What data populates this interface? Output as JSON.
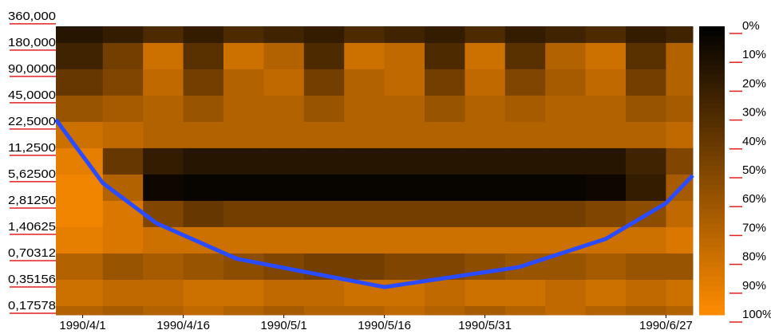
{
  "chart_data": {
    "type": "heatmap",
    "y_scale": "log",
    "ylim": [
      0.1395,
      279
    ],
    "xlim": [
      "1990/3/28",
      "1990/7/1"
    ],
    "yticks": [
      {
        "value": 360,
        "label": "360,000"
      },
      {
        "value": 180,
        "label": "180,000"
      },
      {
        "value": 90,
        "label": "90,0000"
      },
      {
        "value": 45,
        "label": "45,0000"
      },
      {
        "value": 22.5,
        "label": "22,5000"
      },
      {
        "value": 11.25,
        "label": "11,2500"
      },
      {
        "value": 5.625,
        "label": "5,62500"
      },
      {
        "value": 2.8125,
        "label": "2,81250"
      },
      {
        "value": 1.40625,
        "label": "1,40625"
      },
      {
        "value": 0.70312,
        "label": "0,70312"
      },
      {
        "value": 0.35156,
        "label": "0,35156"
      },
      {
        "value": 0.17578,
        "label": "0,17578"
      }
    ],
    "xticks": [
      "1990/4/1",
      "1990/4/16",
      "1990/5/1",
      "1990/5/16",
      "1990/5/31",
      "1990/6/27"
    ],
    "x_edges": [
      "1990/3/28",
      "1990/4/4",
      "1990/4/10",
      "1990/4/16",
      "1990/4/22",
      "1990/4/28",
      "1990/5/4",
      "1990/5/10",
      "1990/5/16",
      "1990/5/22",
      "1990/5/28",
      "1990/6/3",
      "1990/6/9",
      "1990/6/15",
      "1990/6/21",
      "1990/6/27",
      "1990/7/1"
    ],
    "y_edges": [
      279,
      180,
      90,
      45,
      22.5,
      11.25,
      5.625,
      2.8125,
      1.40625,
      0.70312,
      0.35156,
      0.17578,
      0.1395
    ],
    "z": [
      [
        15,
        20,
        30,
        20,
        30,
        25,
        20,
        30,
        25,
        20,
        30,
        20,
        25,
        30,
        20,
        25
      ],
      [
        25,
        45,
        80,
        35,
        80,
        70,
        30,
        80,
        75,
        30,
        80,
        35,
        70,
        80,
        35,
        70
      ],
      [
        40,
        50,
        75,
        45,
        70,
        75,
        45,
        70,
        75,
        45,
        75,
        50,
        65,
        75,
        45,
        70
      ],
      [
        60,
        65,
        70,
        60,
        70,
        70,
        60,
        70,
        70,
        60,
        70,
        65,
        70,
        70,
        60,
        65
      ],
      [
        80,
        75,
        70,
        70,
        70,
        70,
        70,
        70,
        70,
        70,
        70,
        70,
        70,
        70,
        70,
        75
      ],
      [
        90,
        40,
        20,
        15,
        15,
        15,
        15,
        15,
        15,
        15,
        15,
        15,
        15,
        15,
        25,
        50
      ],
      [
        95,
        70,
        5,
        3,
        3,
        3,
        3,
        3,
        3,
        3,
        3,
        3,
        3,
        5,
        20,
        65
      ],
      [
        95,
        85,
        50,
        40,
        45,
        45,
        45,
        45,
        45,
        45,
        45,
        45,
        45,
        50,
        55,
        75
      ],
      [
        90,
        85,
        80,
        80,
        80,
        80,
        80,
        80,
        80,
        80,
        80,
        80,
        80,
        80,
        80,
        85
      ],
      [
        70,
        60,
        65,
        60,
        55,
        50,
        45,
        45,
        50,
        50,
        55,
        60,
        60,
        65,
        60,
        60
      ],
      [
        80,
        75,
        75,
        80,
        80,
        75,
        75,
        80,
        80,
        75,
        80,
        80,
        75,
        80,
        75,
        80
      ],
      [
        70,
        65,
        70,
        75,
        70,
        65,
        70,
        70,
        75,
        70,
        65,
        70,
        75,
        70,
        65,
        70
      ]
    ],
    "colormap": [
      "#000000",
      "#ff8c00"
    ],
    "clim": [
      0,
      100
    ],
    "colorbar_ticks": [
      {
        "value": 0,
        "label": "0%"
      },
      {
        "value": 10,
        "label": "10%"
      },
      {
        "value": 20,
        "label": "20%"
      },
      {
        "value": 30,
        "label": "30%"
      },
      {
        "value": 40,
        "label": "40%"
      },
      {
        "value": 50,
        "label": "50%"
      },
      {
        "value": 60,
        "label": "60%"
      },
      {
        "value": 70,
        "label": "70%"
      },
      {
        "value": 80,
        "label": "80%"
      },
      {
        "value": 90,
        "label": "90%"
      },
      {
        "value": 100,
        "label": "100%"
      }
    ],
    "tick_color": "#e02020",
    "cone": {
      "color": "#2a4bff",
      "x": [
        "1990/3/28",
        "1990/4/4",
        "1990/4/12",
        "1990/4/24",
        "1990/5/16",
        "1990/6/5",
        "1990/6/18",
        "1990/6/27",
        "1990/7/1"
      ],
      "values": [
        23.9,
        4.5,
        1.56,
        0.61,
        0.29,
        0.49,
        1.03,
        2.64,
        5.5
      ]
    }
  }
}
